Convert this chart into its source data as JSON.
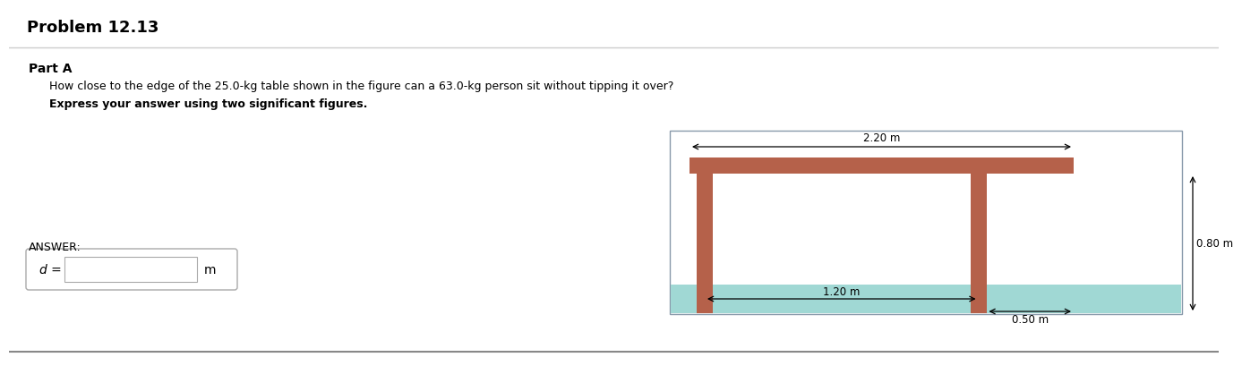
{
  "title": "Problem 12.13",
  "part_label": "Part A",
  "question": "How close to the edge of the 25.0-kg table shown in the figure can a 63.0-kg person sit without tipping it over?",
  "instruction": "Express your answer using two significant figures.",
  "answer_label": "ANSWER:",
  "answer_var": "d =",
  "answer_unit": "m",
  "bg_color": "#ffffff",
  "header_bg": "#e8e8e8",
  "table_color": "#b5614a",
  "floor_color": "#a0d8d4",
  "dim_2_20": "2.20 m",
  "dim_0_80": "0.80 m",
  "dim_1_20": "1.20 m",
  "dim_0_50": "0.50 m",
  "border_color": "#aaaacc",
  "separator_color": "#cccccc",
  "bottom_sep_color": "#888888"
}
